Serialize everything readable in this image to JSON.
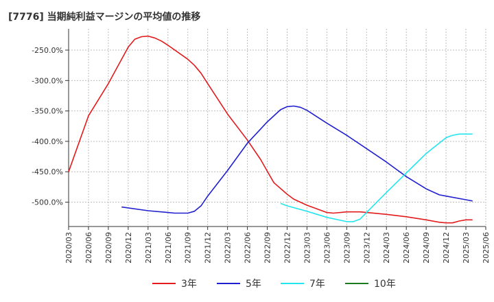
{
  "title": "[7776]  当期純利益マージンの平均値の推移",
  "colors": {
    "3y": "#e31a1c",
    "5y": "#1f1fcf",
    "7y": "#22e5ee",
    "10y": "#1b7a1b",
    "grid": "#bbbbbb",
    "axis": "#333333"
  },
  "chart_data": {
    "type": "line",
    "title": "[7776]  当期純利益マージンの平均値の推移",
    "xlabel": "",
    "ylabel": "",
    "ylim": [
      -540,
      -215
    ],
    "yticks": [
      -250,
      -300,
      -350,
      -400,
      -450,
      -500
    ],
    "ytick_labels": [
      "-250.0%",
      "-300.0%",
      "-350.0%",
      "-400.0%",
      "-450.0%",
      "-500.0%"
    ],
    "xticks": [
      "2020/03",
      "2020/06",
      "2020/09",
      "2020/12",
      "2021/03",
      "2021/06",
      "2021/09",
      "2021/12",
      "2022/03",
      "2022/06",
      "2022/09",
      "2022/12",
      "2023/03",
      "2023/06",
      "2023/09",
      "2023/12",
      "2024/03",
      "2024/06",
      "2024/09",
      "2024/12",
      "2025/03",
      "2025/06"
    ],
    "grid": true,
    "legend_position": "bottom",
    "series": [
      {
        "name": "3年",
        "color_key": "3y",
        "points": [
          [
            "2020/03",
            -450
          ],
          [
            "2020/06",
            -358
          ],
          [
            "2020/09",
            -305
          ],
          [
            "2020/12",
            -245
          ],
          [
            "2021/01",
            -232
          ],
          [
            "2021/02",
            -228
          ],
          [
            "2021/03",
            -227
          ],
          [
            "2021/04",
            -230
          ],
          [
            "2021/05",
            -235
          ],
          [
            "2021/06",
            -242
          ],
          [
            "2021/09",
            -265
          ],
          [
            "2021/10",
            -275
          ],
          [
            "2021/11",
            -288
          ],
          [
            "2021/12",
            -305
          ],
          [
            "2022/03",
            -355
          ],
          [
            "2022/06",
            -398
          ],
          [
            "2022/08",
            -430
          ],
          [
            "2022/09",
            -449
          ],
          [
            "2022/10",
            -468
          ],
          [
            "2022/12",
            -487
          ],
          [
            "2023/01",
            -495
          ],
          [
            "2023/03",
            -505
          ],
          [
            "2023/06",
            -517
          ],
          [
            "2023/07",
            -518
          ],
          [
            "2023/09",
            -516
          ],
          [
            "2023/11",
            -516
          ],
          [
            "2023/12",
            -517
          ],
          [
            "2024/03",
            -520
          ],
          [
            "2024/06",
            -524
          ],
          [
            "2024/09",
            -529
          ],
          [
            "2024/11",
            -533
          ],
          [
            "2024/12",
            -534
          ],
          [
            "2025/01",
            -534
          ],
          [
            "2025/02",
            -531
          ],
          [
            "2025/03",
            -529
          ],
          [
            "2025/04",
            -529
          ]
        ]
      },
      {
        "name": "5年",
        "color_key": "5y",
        "points": [
          [
            "2020/11",
            -508
          ],
          [
            "2021/03",
            -514
          ],
          [
            "2021/06",
            -517
          ],
          [
            "2021/07",
            -518
          ],
          [
            "2021/08",
            -518
          ],
          [
            "2021/09",
            -518
          ],
          [
            "2021/10",
            -515
          ],
          [
            "2021/11",
            -506
          ],
          [
            "2021/12",
            -490
          ],
          [
            "2022/03",
            -448
          ],
          [
            "2022/06",
            -403
          ],
          [
            "2022/09",
            -368
          ],
          [
            "2022/11",
            -348
          ],
          [
            "2022/12",
            -343
          ],
          [
            "2023/01",
            -342
          ],
          [
            "2023/02",
            -344
          ],
          [
            "2023/03",
            -349
          ],
          [
            "2023/06",
            -370
          ],
          [
            "2023/09",
            -390
          ],
          [
            "2023/12",
            -412
          ],
          [
            "2024/03",
            -434
          ],
          [
            "2024/06",
            -458
          ],
          [
            "2024/09",
            -478
          ],
          [
            "2024/11",
            -488
          ],
          [
            "2024/12",
            -490
          ],
          [
            "2025/03",
            -496
          ],
          [
            "2025/04",
            -498
          ]
        ]
      },
      {
        "name": "7年",
        "color_key": "7y",
        "points": [
          [
            "2022/11",
            -502
          ],
          [
            "2022/12",
            -506
          ],
          [
            "2023/03",
            -515
          ],
          [
            "2023/06",
            -525
          ],
          [
            "2023/09",
            -532
          ],
          [
            "2023/10",
            -532
          ],
          [
            "2023/11",
            -528
          ],
          [
            "2023/12",
            -517
          ],
          [
            "2024/03",
            -484
          ],
          [
            "2024/06",
            -452
          ],
          [
            "2024/09",
            -420
          ],
          [
            "2024/12",
            -394
          ],
          [
            "2025/01",
            -390
          ],
          [
            "2025/02",
            -388
          ],
          [
            "2025/03",
            -388
          ],
          [
            "2025/04",
            -388
          ]
        ]
      },
      {
        "name": "10年",
        "color_key": "10y",
        "points": []
      }
    ]
  },
  "legend": [
    {
      "label": "3年",
      "color_key": "3y"
    },
    {
      "label": "5年",
      "color_key": "5y"
    },
    {
      "label": "7年",
      "color_key": "7y"
    },
    {
      "label": "10年",
      "color_key": "10y"
    }
  ]
}
